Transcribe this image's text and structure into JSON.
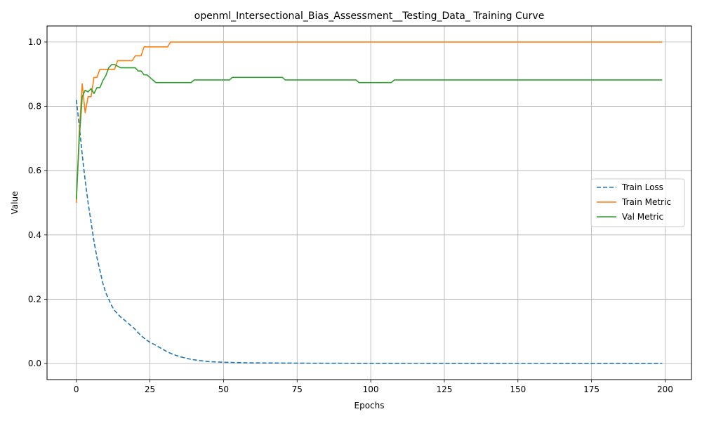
{
  "chart_data": {
    "type": "line",
    "title": "openml_Intersectional_Bias_Assessment__Testing_Data_ Training Curve",
    "xlabel": "Epochs",
    "ylabel": "Value",
    "xlim": [
      -9.95,
      208.95
    ],
    "ylim": [
      -0.05,
      1.05
    ],
    "xticks": [
      0,
      25,
      50,
      75,
      100,
      125,
      150,
      175,
      200
    ],
    "yticks": [
      0.0,
      0.2,
      0.4,
      0.6,
      0.8,
      1.0
    ],
    "xtick_labels": [
      "0",
      "25",
      "50",
      "75",
      "100",
      "125",
      "150",
      "175",
      "200"
    ],
    "ytick_labels": [
      "0.0",
      "0.2",
      "0.4",
      "0.6",
      "0.8",
      "1.0"
    ],
    "grid": true,
    "legend": "center-right",
    "series": [
      {
        "name": "Train Loss",
        "color": "#1f77b4",
        "style": "dashed",
        "points": [
          [
            0,
            0.82
          ],
          [
            1,
            0.74
          ],
          [
            2,
            0.65
          ],
          [
            3,
            0.57
          ],
          [
            4,
            0.5
          ],
          [
            5,
            0.44
          ],
          [
            6,
            0.38
          ],
          [
            7,
            0.33
          ],
          [
            8,
            0.29
          ],
          [
            9,
            0.25
          ],
          [
            10,
            0.22
          ],
          [
            11,
            0.2
          ],
          [
            12,
            0.18
          ],
          [
            13,
            0.165
          ],
          [
            14,
            0.155
          ],
          [
            15,
            0.145
          ],
          [
            16,
            0.138
          ],
          [
            17,
            0.13
          ],
          [
            18,
            0.122
          ],
          [
            19,
            0.115
          ],
          [
            20,
            0.106
          ],
          [
            21,
            0.096
          ],
          [
            22,
            0.087
          ],
          [
            23,
            0.079
          ],
          [
            24,
            0.072
          ],
          [
            25,
            0.066
          ],
          [
            27,
            0.057
          ],
          [
            29,
            0.046
          ],
          [
            31,
            0.036
          ],
          [
            33,
            0.028
          ],
          [
            35,
            0.022
          ],
          [
            37,
            0.017
          ],
          [
            39,
            0.013
          ],
          [
            42,
            0.009
          ],
          [
            45,
            0.006
          ],
          [
            50,
            0.004
          ],
          [
            55,
            0.003
          ],
          [
            60,
            0.002
          ],
          [
            70,
            0.0015
          ],
          [
            80,
            0.001
          ],
          [
            100,
            0.0006
          ],
          [
            150,
            0.0002
          ],
          [
            199,
            0.0001
          ]
        ]
      },
      {
        "name": "Train Metric",
        "color": "#ff7f0e",
        "style": "solid",
        "points": [
          [
            0,
            0.5
          ],
          [
            1,
            0.72
          ],
          [
            2,
            0.87
          ],
          [
            3,
            0.78
          ],
          [
            4,
            0.83
          ],
          [
            5,
            0.83
          ],
          [
            6,
            0.89
          ],
          [
            7,
            0.89
          ],
          [
            8,
            0.915
          ],
          [
            9,
            0.915
          ],
          [
            10,
            0.915
          ],
          [
            11,
            0.915
          ],
          [
            12,
            0.915
          ],
          [
            13,
            0.915
          ],
          [
            14,
            0.942
          ],
          [
            15,
            0.942
          ],
          [
            16,
            0.942
          ],
          [
            17,
            0.942
          ],
          [
            18,
            0.942
          ],
          [
            19,
            0.942
          ],
          [
            20,
            0.957
          ],
          [
            21,
            0.957
          ],
          [
            22,
            0.957
          ],
          [
            23,
            0.985
          ],
          [
            24,
            0.985
          ],
          [
            25,
            0.985
          ],
          [
            26,
            0.985
          ],
          [
            27,
            0.985
          ],
          [
            28,
            0.985
          ],
          [
            29,
            0.985
          ],
          [
            30,
            0.985
          ],
          [
            31,
            0.985
          ],
          [
            32,
            1.0
          ],
          [
            60,
            1.0
          ],
          [
            100,
            1.0
          ],
          [
            150,
            1.0
          ],
          [
            199,
            1.0
          ]
        ]
      },
      {
        "name": "Val Metric",
        "color": "#2ca02c",
        "style": "solid",
        "points": [
          [
            0,
            0.51
          ],
          [
            1,
            0.7
          ],
          [
            2,
            0.83
          ],
          [
            3,
            0.85
          ],
          [
            4,
            0.845
          ],
          [
            5,
            0.855
          ],
          [
            6,
            0.84
          ],
          [
            7,
            0.858
          ],
          [
            8,
            0.858
          ],
          [
            9,
            0.88
          ],
          [
            10,
            0.895
          ],
          [
            11,
            0.92
          ],
          [
            12,
            0.93
          ],
          [
            13,
            0.93
          ],
          [
            14,
            0.925
          ],
          [
            15,
            0.92
          ],
          [
            16,
            0.92
          ],
          [
            17,
            0.92
          ],
          [
            18,
            0.92
          ],
          [
            19,
            0.92
          ],
          [
            20,
            0.92
          ],
          [
            21,
            0.91
          ],
          [
            22,
            0.91
          ],
          [
            23,
            0.898
          ],
          [
            24,
            0.898
          ],
          [
            25,
            0.89
          ],
          [
            26,
            0.882
          ],
          [
            27,
            0.874
          ],
          [
            28,
            0.874
          ],
          [
            30,
            0.874
          ],
          [
            35,
            0.874
          ],
          [
            39,
            0.874
          ],
          [
            40,
            0.882
          ],
          [
            45,
            0.882
          ],
          [
            52,
            0.882
          ],
          [
            53,
            0.89
          ],
          [
            60,
            0.89
          ],
          [
            70,
            0.89
          ],
          [
            71,
            0.882
          ],
          [
            80,
            0.882
          ],
          [
            95,
            0.882
          ],
          [
            96,
            0.874
          ],
          [
            100,
            0.874
          ],
          [
            107,
            0.874
          ],
          [
            108,
            0.882
          ],
          [
            130,
            0.882
          ],
          [
            160,
            0.882
          ],
          [
            199,
            0.882
          ]
        ]
      }
    ]
  }
}
